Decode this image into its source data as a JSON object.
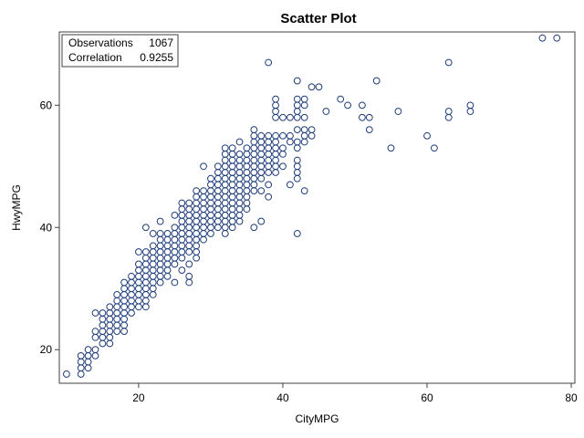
{
  "chart_data": {
    "type": "scatter",
    "title": "Scatter Plot",
    "xlabel": "CityMPG",
    "ylabel": "HwyMPG",
    "xlim": [
      9,
      80.5
    ],
    "ylim": [
      14.5,
      72
    ],
    "xticks": [
      20,
      40,
      60,
      80
    ],
    "yticks": [
      20,
      40,
      60
    ],
    "grid": false,
    "inset": {
      "rows": [
        {
          "label": "Observations",
          "value": "1067"
        },
        {
          "label": "Correlation",
          "value": "0.9255"
        }
      ],
      "placement": "top-left"
    },
    "marker": {
      "shape": "open-circle",
      "color": "#1f3d7a"
    },
    "points": [
      [
        10,
        16
      ],
      [
        12,
        16
      ],
      [
        12,
        17
      ],
      [
        12,
        18
      ],
      [
        12,
        19
      ],
      [
        13,
        17
      ],
      [
        13,
        18
      ],
      [
        13,
        19
      ],
      [
        13,
        20
      ],
      [
        14,
        19
      ],
      [
        14,
        20
      ],
      [
        14,
        22
      ],
      [
        14,
        23
      ],
      [
        14,
        26
      ],
      [
        15,
        21
      ],
      [
        15,
        22
      ],
      [
        15,
        23
      ],
      [
        15,
        24
      ],
      [
        15,
        25
      ],
      [
        15,
        26
      ],
      [
        16,
        21
      ],
      [
        16,
        22
      ],
      [
        16,
        23
      ],
      [
        16,
        24
      ],
      [
        16,
        25
      ],
      [
        16,
        26
      ],
      [
        16,
        27
      ],
      [
        17,
        23
      ],
      [
        17,
        24
      ],
      [
        17,
        25
      ],
      [
        17,
        26
      ],
      [
        17,
        27
      ],
      [
        17,
        28
      ],
      [
        17,
        29
      ],
      [
        18,
        23
      ],
      [
        18,
        24
      ],
      [
        18,
        25
      ],
      [
        18,
        26
      ],
      [
        18,
        27
      ],
      [
        18,
        28
      ],
      [
        18,
        29
      ],
      [
        18,
        30
      ],
      [
        18,
        31
      ],
      [
        19,
        26
      ],
      [
        19,
        27
      ],
      [
        19,
        28
      ],
      [
        19,
        29
      ],
      [
        19,
        30
      ],
      [
        19,
        31
      ],
      [
        19,
        32
      ],
      [
        20,
        27
      ],
      [
        20,
        28
      ],
      [
        20,
        29
      ],
      [
        20,
        30
      ],
      [
        20,
        31
      ],
      [
        20,
        32
      ],
      [
        20,
        33
      ],
      [
        20,
        34
      ],
      [
        20,
        36
      ],
      [
        21,
        27
      ],
      [
        21,
        28
      ],
      [
        21,
        29
      ],
      [
        21,
        30
      ],
      [
        21,
        31
      ],
      [
        21,
        32
      ],
      [
        21,
        33
      ],
      [
        21,
        34
      ],
      [
        21,
        35
      ],
      [
        21,
        36
      ],
      [
        21,
        40
      ],
      [
        22,
        29
      ],
      [
        22,
        30
      ],
      [
        22,
        31
      ],
      [
        22,
        32
      ],
      [
        22,
        33
      ],
      [
        22,
        34
      ],
      [
        22,
        35
      ],
      [
        22,
        36
      ],
      [
        22,
        37
      ],
      [
        22,
        39
      ],
      [
        23,
        31
      ],
      [
        23,
        32
      ],
      [
        23,
        33
      ],
      [
        23,
        34
      ],
      [
        23,
        35
      ],
      [
        23,
        36
      ],
      [
        23,
        37
      ],
      [
        23,
        38
      ],
      [
        23,
        39
      ],
      [
        23,
        41
      ],
      [
        24,
        32
      ],
      [
        24,
        33
      ],
      [
        24,
        34
      ],
      [
        24,
        35
      ],
      [
        24,
        36
      ],
      [
        24,
        37
      ],
      [
        24,
        38
      ],
      [
        24,
        39
      ],
      [
        25,
        31
      ],
      [
        25,
        34
      ],
      [
        25,
        35
      ],
      [
        25,
        36
      ],
      [
        25,
        37
      ],
      [
        25,
        38
      ],
      [
        25,
        39
      ],
      [
        25,
        40
      ],
      [
        25,
        42
      ],
      [
        26,
        33
      ],
      [
        26,
        35
      ],
      [
        26,
        36
      ],
      [
        26,
        37
      ],
      [
        26,
        38
      ],
      [
        26,
        39
      ],
      [
        26,
        40
      ],
      [
        26,
        41
      ],
      [
        26,
        42
      ],
      [
        26,
        43
      ],
      [
        26,
        44
      ],
      [
        27,
        31
      ],
      [
        27,
        32
      ],
      [
        27,
        34
      ],
      [
        27,
        36
      ],
      [
        27,
        37
      ],
      [
        27,
        38
      ],
      [
        27,
        39
      ],
      [
        27,
        40
      ],
      [
        27,
        41
      ],
      [
        27,
        42
      ],
      [
        27,
        43
      ],
      [
        27,
        44
      ],
      [
        28,
        35
      ],
      [
        28,
        36
      ],
      [
        28,
        37
      ],
      [
        28,
        38
      ],
      [
        28,
        39
      ],
      [
        28,
        40
      ],
      [
        28,
        41
      ],
      [
        28,
        42
      ],
      [
        28,
        43
      ],
      [
        28,
        44
      ],
      [
        28,
        45
      ],
      [
        28,
        46
      ],
      [
        29,
        38
      ],
      [
        29,
        39
      ],
      [
        29,
        40
      ],
      [
        29,
        41
      ],
      [
        29,
        42
      ],
      [
        29,
        43
      ],
      [
        29,
        44
      ],
      [
        29,
        45
      ],
      [
        29,
        46
      ],
      [
        29,
        50
      ],
      [
        30,
        39
      ],
      [
        30,
        40
      ],
      [
        30,
        41
      ],
      [
        30,
        42
      ],
      [
        30,
        43
      ],
      [
        30,
        44
      ],
      [
        30,
        45
      ],
      [
        30,
        46
      ],
      [
        30,
        47
      ],
      [
        30,
        48
      ],
      [
        31,
        40
      ],
      [
        31,
        41
      ],
      [
        31,
        42
      ],
      [
        31,
        43
      ],
      [
        31,
        44
      ],
      [
        31,
        45
      ],
      [
        31,
        46
      ],
      [
        31,
        47
      ],
      [
        31,
        48
      ],
      [
        31,
        49
      ],
      [
        31,
        50
      ],
      [
        32,
        39
      ],
      [
        32,
        40
      ],
      [
        32,
        41
      ],
      [
        32,
        42
      ],
      [
        32,
        43
      ],
      [
        32,
        44
      ],
      [
        32,
        45
      ],
      [
        32,
        46
      ],
      [
        32,
        47
      ],
      [
        32,
        48
      ],
      [
        32,
        49
      ],
      [
        32,
        50
      ],
      [
        32,
        51
      ],
      [
        32,
        52
      ],
      [
        32,
        53
      ],
      [
        33,
        40
      ],
      [
        33,
        41
      ],
      [
        33,
        42
      ],
      [
        33,
        43
      ],
      [
        33,
        44
      ],
      [
        33,
        45
      ],
      [
        33,
        46
      ],
      [
        33,
        47
      ],
      [
        33,
        48
      ],
      [
        33,
        49
      ],
      [
        33,
        50
      ],
      [
        33,
        51
      ],
      [
        33,
        52
      ],
      [
        33,
        53
      ],
      [
        34,
        41
      ],
      [
        34,
        42
      ],
      [
        34,
        43
      ],
      [
        34,
        44
      ],
      [
        34,
        45
      ],
      [
        34,
        46
      ],
      [
        34,
        47
      ],
      [
        34,
        48
      ],
      [
        34,
        49
      ],
      [
        34,
        50
      ],
      [
        34,
        51
      ],
      [
        34,
        52
      ],
      [
        34,
        54
      ],
      [
        35,
        43
      ],
      [
        35,
        44
      ],
      [
        35,
        45
      ],
      [
        35,
        46
      ],
      [
        35,
        47
      ],
      [
        35,
        48
      ],
      [
        35,
        49
      ],
      [
        35,
        50
      ],
      [
        35,
        51
      ],
      [
        35,
        52
      ],
      [
        35,
        53
      ],
      [
        36,
        40
      ],
      [
        36,
        46
      ],
      [
        36,
        47
      ],
      [
        36,
        48
      ],
      [
        36,
        49
      ],
      [
        36,
        50
      ],
      [
        36,
        51
      ],
      [
        36,
        52
      ],
      [
        36,
        53
      ],
      [
        36,
        54
      ],
      [
        36,
        55
      ],
      [
        36,
        56
      ],
      [
        37,
        41
      ],
      [
        37,
        46
      ],
      [
        37,
        48
      ],
      [
        37,
        49
      ],
      [
        37,
        50
      ],
      [
        37,
        51
      ],
      [
        37,
        52
      ],
      [
        37,
        53
      ],
      [
        37,
        54
      ],
      [
        37,
        55
      ],
      [
        38,
        45
      ],
      [
        38,
        47
      ],
      [
        38,
        49
      ],
      [
        38,
        50
      ],
      [
        38,
        51
      ],
      [
        38,
        52
      ],
      [
        38,
        53
      ],
      [
        38,
        54
      ],
      [
        38,
        55
      ],
      [
        38,
        67
      ],
      [
        39,
        49
      ],
      [
        39,
        50
      ],
      [
        39,
        51
      ],
      [
        39,
        52
      ],
      [
        39,
        53
      ],
      [
        39,
        54
      ],
      [
        39,
        55
      ],
      [
        39,
        58
      ],
      [
        39,
        59
      ],
      [
        39,
        60
      ],
      [
        39,
        61
      ],
      [
        40,
        50
      ],
      [
        40,
        52
      ],
      [
        40,
        53
      ],
      [
        40,
        55
      ],
      [
        40,
        58
      ],
      [
        41,
        47
      ],
      [
        41,
        54
      ],
      [
        41,
        55
      ],
      [
        41,
        58
      ],
      [
        42,
        39
      ],
      [
        42,
        48
      ],
      [
        42,
        49
      ],
      [
        42,
        50
      ],
      [
        42,
        51
      ],
      [
        42,
        53
      ],
      [
        42,
        54
      ],
      [
        42,
        56
      ],
      [
        42,
        58
      ],
      [
        42,
        59
      ],
      [
        42,
        60
      ],
      [
        42,
        61
      ],
      [
        42,
        64
      ],
      [
        43,
        46
      ],
      [
        43,
        54
      ],
      [
        43,
        55
      ],
      [
        43,
        56
      ],
      [
        43,
        58
      ],
      [
        43,
        60
      ],
      [
        43,
        61
      ],
      [
        44,
        55
      ],
      [
        44,
        56
      ],
      [
        44,
        63
      ],
      [
        45,
        63
      ],
      [
        46,
        59
      ],
      [
        48,
        61
      ],
      [
        49,
        60
      ],
      [
        51,
        58
      ],
      [
        51,
        60
      ],
      [
        52,
        56
      ],
      [
        52,
        58
      ],
      [
        53,
        64
      ],
      [
        55,
        53
      ],
      [
        56,
        59
      ],
      [
        60,
        55
      ],
      [
        61,
        53
      ],
      [
        63,
        58
      ],
      [
        63,
        59
      ],
      [
        63,
        67
      ],
      [
        66,
        59
      ],
      [
        66,
        60
      ],
      [
        76,
        71
      ],
      [
        78,
        71
      ]
    ]
  }
}
